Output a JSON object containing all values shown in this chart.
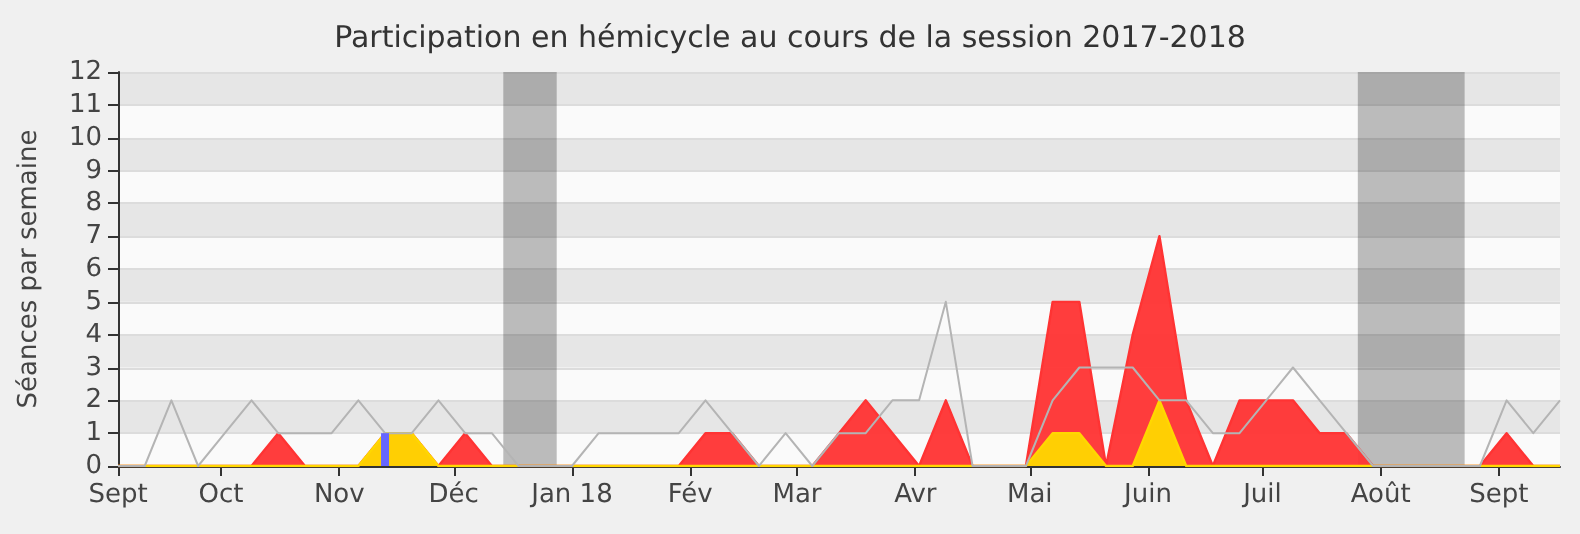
{
  "chart_data": {
    "type": "area",
    "title": "Participation en hémicycle au cours de la session 2017-2018",
    "ylabel": "Séances par semaine",
    "x": [
      "2017-09-04",
      "2017-09-11",
      "2017-09-18",
      "2017-09-25",
      "2017-10-02",
      "2017-10-09",
      "2017-10-16",
      "2017-10-23",
      "2017-10-30",
      "2017-11-06",
      "2017-11-13",
      "2017-11-20",
      "2017-11-27",
      "2017-12-04",
      "2017-12-11",
      "2017-12-18",
      "2017-12-25",
      "2018-01-01",
      "2018-01-08",
      "2018-01-15",
      "2018-01-22",
      "2018-01-29",
      "2018-02-05",
      "2018-02-12",
      "2018-02-19",
      "2018-02-26",
      "2018-03-05",
      "2018-03-12",
      "2018-03-19",
      "2018-03-26",
      "2018-04-02",
      "2018-04-09",
      "2018-04-16",
      "2018-04-23",
      "2018-04-30",
      "2018-05-07",
      "2018-05-14",
      "2018-05-21",
      "2018-05-28",
      "2018-06-04",
      "2018-06-11",
      "2018-06-18",
      "2018-06-25",
      "2018-07-02",
      "2018-07-09",
      "2018-07-16",
      "2018-07-23",
      "2018-07-30",
      "2018-08-06",
      "2018-08-13",
      "2018-08-20",
      "2018-08-27",
      "2018-09-03",
      "2018-09-10",
      "2018-09-17"
    ],
    "series": [
      {
        "color": "#ff3333",
        "values": [
          0,
          0,
          0,
          0,
          0,
          0,
          1,
          0,
          0,
          0,
          1,
          1,
          0,
          1,
          0,
          0,
          0,
          0,
          0,
          0,
          0,
          0,
          1,
          1,
          0,
          0,
          0,
          1,
          2,
          1,
          0,
          2,
          0,
          0,
          0,
          5,
          5,
          0,
          4,
          7,
          2,
          0,
          2,
          2,
          2,
          1,
          1,
          0,
          0,
          0,
          0,
          0,
          1,
          0,
          0
        ]
      },
      {
        "type": "area",
        "color": "#ffd700",
        "values": [
          0,
          0,
          0,
          0,
          0,
          0,
          0,
          0,
          0,
          0,
          1,
          1,
          0,
          0,
          0,
          0,
          0,
          0,
          0,
          0,
          0,
          0,
          0,
          0,
          0,
          0,
          0,
          0,
          0,
          0,
          0,
          0,
          0,
          0,
          0,
          1,
          1,
          0,
          0,
          2,
          0,
          0,
          0,
          0,
          0,
          0,
          0,
          0,
          0,
          0,
          0,
          0,
          0,
          0,
          0
        ]
      },
      {
        "type": "line",
        "color": "#b4b4b4",
        "values": [
          0,
          0,
          2,
          0,
          1,
          2,
          1,
          1,
          1,
          2,
          1,
          1,
          2,
          1,
          1,
          0,
          0,
          0,
          1,
          1,
          1,
          1,
          2,
          1,
          0,
          1,
          0,
          1,
          1,
          2,
          2,
          5,
          0,
          0,
          0,
          2,
          3,
          3,
          3,
          2,
          2,
          1,
          1,
          2,
          3,
          2,
          1,
          0,
          0,
          0,
          0,
          0,
          2,
          1,
          2
        ]
      },
      {
        "type": "bar",
        "color": "#6666ff",
        "x": [
          "2017-11-13"
        ],
        "values": [
          1
        ]
      }
    ],
    "xlim": [
      "2017-09-04",
      "2018-09-17"
    ],
    "xticks": [
      {
        "value": "2017-09-04",
        "label": "Sept"
      },
      {
        "value": "2017-10-01",
        "label": "Oct"
      },
      {
        "value": "2017-11-01",
        "label": "Nov"
      },
      {
        "value": "2017-12-01",
        "label": "Déc"
      },
      {
        "value": "2018-01-01",
        "label": "Jan 18"
      },
      {
        "value": "2018-02-01",
        "label": "Fév"
      },
      {
        "value": "2018-03-01",
        "label": "Mar"
      },
      {
        "value": "2018-04-01",
        "label": "Avr"
      },
      {
        "value": "2018-05-01",
        "label": "Mai"
      },
      {
        "value": "2018-06-01",
        "label": "Juin"
      },
      {
        "value": "2018-07-01",
        "label": "Juil"
      },
      {
        "value": "2018-08-01",
        "label": "Août"
      },
      {
        "value": "2018-09-01",
        "label": "Sept"
      }
    ],
    "ylim": [
      0,
      12
    ],
    "yticks": [
      0,
      1,
      2,
      3,
      4,
      5,
      6,
      7,
      8,
      9,
      10,
      11,
      12
    ],
    "bands": [
      {
        "axis": "x",
        "from": "2017-12-14",
        "to": "2017-12-28"
      },
      {
        "axis": "x",
        "from": "2018-07-26",
        "to": "2018-08-23"
      }
    ],
    "grid": "y",
    "marker": "none"
  }
}
